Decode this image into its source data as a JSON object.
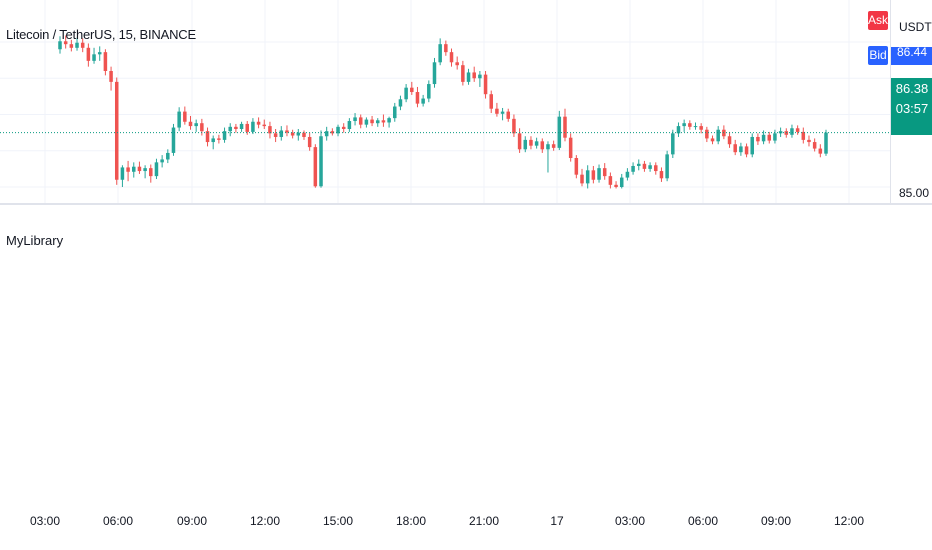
{
  "symbol": {
    "name": "Litecoin / TetherUS",
    "interval": "15",
    "exchange": "BINANCE"
  },
  "price_axis": {
    "currency": "USDT",
    "tick_label": "85.00",
    "bid_price_partial": "86.44",
    "last_price": "86.38",
    "countdown": "03:57"
  },
  "buttons": {
    "ask": "Ask",
    "bid": "Bid"
  },
  "indicator": {
    "title": "MyLibrary"
  },
  "time_axis": {
    "labels": [
      "03:00",
      "06:00",
      "09:00",
      "12:00",
      "15:00",
      "18:00",
      "21:00",
      "17",
      "03:00",
      "06:00",
      "09:00",
      "12:00"
    ]
  },
  "colors": {
    "up": "#26a69a",
    "down": "#ef5350",
    "last_price_badge": "#089981",
    "ask": "#f23645",
    "bid": "#2962ff"
  },
  "chart_data": {
    "type": "candlestick",
    "pattern": "UDDUDDUUDUDUDDUUDDDUUUUDUDUUUDUDDDUUUDUUDUDDUDUUDUDDUUUDDUDDUUUUUDUUUDUUUUUDDDUUUDUUUUUUUDDDDUUDDDUDDDUDDDDUUUUDDUDDDDUDDDUDDDDUUUUUUUDUDUUUUUUUDDUDDUDDUDDUDUUUUDUDDUUUU",
    "ohlc": [
      [
        86.9,
        87.08,
        86.84,
        87.01
      ],
      [
        87.01,
        87.09,
        86.91,
        86.97
      ],
      [
        86.97,
        87.03,
        86.87,
        86.92
      ],
      [
        86.92,
        87.06,
        86.88,
        86.99
      ],
      [
        86.99,
        87.05,
        86.86,
        86.92
      ],
      [
        86.92,
        86.98,
        86.66,
        86.74
      ],
      [
        86.74,
        86.92,
        86.7,
        86.83
      ],
      [
        86.83,
        86.94,
        86.74,
        86.86
      ],
      [
        86.86,
        86.9,
        86.54,
        86.6
      ],
      [
        86.6,
        86.66,
        86.33,
        86.45
      ],
      [
        86.45,
        86.51,
        85.03,
        85.1
      ],
      [
        85.1,
        85.3,
        85.0,
        85.27
      ],
      [
        85.27,
        85.36,
        85.08,
        85.21
      ],
      [
        85.21,
        85.34,
        85.13,
        85.28
      ],
      [
        85.28,
        85.35,
        85.18,
        85.22
      ],
      [
        85.22,
        85.3,
        85.12,
        85.26
      ],
      [
        85.26,
        85.31,
        85.06,
        85.15
      ],
      [
        85.15,
        85.39,
        85.11,
        85.34
      ],
      [
        85.34,
        85.44,
        85.27,
        85.38
      ],
      [
        85.38,
        85.52,
        85.33,
        85.47
      ],
      [
        85.47,
        85.87,
        85.43,
        85.82
      ],
      [
        85.82,
        86.1,
        85.77,
        86.04
      ],
      [
        86.04,
        86.11,
        85.86,
        85.9
      ],
      [
        85.9,
        85.98,
        85.79,
        85.84
      ],
      [
        85.84,
        85.93,
        85.76,
        85.88
      ],
      [
        85.88,
        85.94,
        85.71,
        85.77
      ],
      [
        85.77,
        85.82,
        85.56,
        85.62
      ],
      [
        85.62,
        85.71,
        85.52,
        85.67
      ],
      [
        85.67,
        85.72,
        85.6,
        85.65
      ],
      [
        85.65,
        85.82,
        85.61,
        85.77
      ],
      [
        85.77,
        85.88,
        85.7,
        85.83
      ],
      [
        85.83,
        85.87,
        85.75,
        85.8
      ],
      [
        85.8,
        85.9,
        85.76,
        85.87
      ],
      [
        85.87,
        85.91,
        85.72,
        85.76
      ],
      [
        85.76,
        85.95,
        85.73,
        85.9
      ],
      [
        85.9,
        85.96,
        85.81,
        85.86
      ],
      [
        85.86,
        85.93,
        85.8,
        85.84
      ],
      [
        85.84,
        85.9,
        85.67,
        85.74
      ],
      [
        85.74,
        85.8,
        85.62,
        85.69
      ],
      [
        85.69,
        85.84,
        85.64,
        85.78
      ],
      [
        85.78,
        85.85,
        85.7,
        85.75
      ],
      [
        85.75,
        85.79,
        85.67,
        85.71
      ],
      [
        85.71,
        85.8,
        85.64,
        85.75
      ],
      [
        85.75,
        85.78,
        85.65,
        85.69
      ],
      [
        85.69,
        85.75,
        85.5,
        85.55
      ],
      [
        85.55,
        85.59,
        84.99,
        85.01
      ],
      [
        85.01,
        85.78,
        84.99,
        85.7
      ],
      [
        85.7,
        85.83,
        85.64,
        85.77
      ],
      [
        85.77,
        85.81,
        85.71,
        85.74
      ],
      [
        85.74,
        85.86,
        85.7,
        85.83
      ],
      [
        85.83,
        85.88,
        85.75,
        85.8
      ],
      [
        85.8,
        85.95,
        85.76,
        85.91
      ],
      [
        85.91,
        86.02,
        85.85,
        85.96
      ],
      [
        85.96,
        86.0,
        85.81,
        85.86
      ],
      [
        85.86,
        85.96,
        85.82,
        85.93
      ],
      [
        85.93,
        85.98,
        85.84,
        85.88
      ],
      [
        85.88,
        85.95,
        85.83,
        85.92
      ],
      [
        85.92,
        86.0,
        85.83,
        85.89
      ],
      [
        85.89,
        85.97,
        85.82,
        85.95
      ],
      [
        85.95,
        86.16,
        85.9,
        86.11
      ],
      [
        86.11,
        86.26,
        86.06,
        86.21
      ],
      [
        86.21,
        86.42,
        86.17,
        86.37
      ],
      [
        86.37,
        86.45,
        86.27,
        86.31
      ],
      [
        86.31,
        86.38,
        86.1,
        86.15
      ],
      [
        86.15,
        86.27,
        86.11,
        86.22
      ],
      [
        86.22,
        86.47,
        86.17,
        86.42
      ],
      [
        86.42,
        86.78,
        86.37,
        86.72
      ],
      [
        86.72,
        87.05,
        86.68,
        86.97
      ],
      [
        86.97,
        87.02,
        86.81,
        86.86
      ],
      [
        86.86,
        86.91,
        86.66,
        86.72
      ],
      [
        86.72,
        86.8,
        86.62,
        86.68
      ],
      [
        86.68,
        86.74,
        86.4,
        86.45
      ],
      [
        86.45,
        86.63,
        86.41,
        86.58
      ],
      [
        86.58,
        86.66,
        86.45,
        86.5
      ],
      [
        86.5,
        86.6,
        86.38,
        86.55
      ],
      [
        86.55,
        86.6,
        86.22,
        86.28
      ],
      [
        86.28,
        86.33,
        86.02,
        86.08
      ],
      [
        86.08,
        86.16,
        85.97,
        86.01
      ],
      [
        86.01,
        86.09,
        85.92,
        86.04
      ],
      [
        86.04,
        86.08,
        85.9,
        85.94
      ],
      [
        85.94,
        86.0,
        85.69,
        85.74
      ],
      [
        85.74,
        85.81,
        85.47,
        85.52
      ],
      [
        85.52,
        85.7,
        85.48,
        85.65
      ],
      [
        85.65,
        85.7,
        85.52,
        85.57
      ],
      [
        85.57,
        85.68,
        85.53,
        85.63
      ],
      [
        85.63,
        85.67,
        85.47,
        85.52
      ],
      [
        85.52,
        85.63,
        85.2,
        85.59
      ],
      [
        85.59,
        85.64,
        85.5,
        85.54
      ],
      [
        85.54,
        86.05,
        85.51,
        85.97
      ],
      [
        85.97,
        86.08,
        85.63,
        85.68
      ],
      [
        85.68,
        85.74,
        85.35,
        85.4
      ],
      [
        85.4,
        85.44,
        85.12,
        85.17
      ],
      [
        85.17,
        85.25,
        85.01,
        85.05
      ],
      [
        85.05,
        85.3,
        84.98,
        85.23
      ],
      [
        85.23,
        85.29,
        85.05,
        85.1
      ],
      [
        85.1,
        85.31,
        85.06,
        85.26
      ],
      [
        85.26,
        85.33,
        85.1,
        85.15
      ],
      [
        85.15,
        85.2,
        84.98,
        85.03
      ],
      [
        85.03,
        85.08,
        84.98,
        85.0
      ],
      [
        85.0,
        85.18,
        84.98,
        85.13
      ],
      [
        85.13,
        85.26,
        85.09,
        85.21
      ],
      [
        85.21,
        85.34,
        85.17,
        85.29
      ],
      [
        85.29,
        85.38,
        85.23,
        85.32
      ],
      [
        85.32,
        85.36,
        85.21,
        85.25
      ],
      [
        85.25,
        85.34,
        85.21,
        85.3
      ],
      [
        85.3,
        85.34,
        85.17,
        85.22
      ],
      [
        85.22,
        85.27,
        85.07,
        85.12
      ],
      [
        85.12,
        85.5,
        85.08,
        85.45
      ],
      [
        85.45,
        85.79,
        85.4,
        85.74
      ],
      [
        85.74,
        85.89,
        85.69,
        85.84
      ],
      [
        85.84,
        85.93,
        85.76,
        85.88
      ],
      [
        85.88,
        85.92,
        85.79,
        85.83
      ],
      [
        85.83,
        85.89,
        85.79,
        85.84
      ],
      [
        85.84,
        85.88,
        85.74,
        85.79
      ],
      [
        85.79,
        85.83,
        85.62,
        85.67
      ],
      [
        85.67,
        85.71,
        85.59,
        85.63
      ],
      [
        85.63,
        85.84,
        85.59,
        85.79
      ],
      [
        85.79,
        85.85,
        85.66,
        85.7
      ],
      [
        85.7,
        85.76,
        85.54,
        85.59
      ],
      [
        85.59,
        85.65,
        85.44,
        85.48
      ],
      [
        85.48,
        85.61,
        85.43,
        85.56
      ],
      [
        85.56,
        85.6,
        85.41,
        85.45
      ],
      [
        85.45,
        85.74,
        85.41,
        85.69
      ],
      [
        85.69,
        85.74,
        85.58,
        85.63
      ],
      [
        85.63,
        85.78,
        85.59,
        85.72
      ],
      [
        85.72,
        85.76,
        85.6,
        85.64
      ],
      [
        85.64,
        85.79,
        85.6,
        85.74
      ],
      [
        85.74,
        85.82,
        85.69,
        85.77
      ],
      [
        85.77,
        85.81,
        85.68,
        85.72
      ],
      [
        85.72,
        85.86,
        85.68,
        85.81
      ],
      [
        85.81,
        85.85,
        85.72,
        85.76
      ],
      [
        85.76,
        85.82,
        85.6,
        85.65
      ],
      [
        85.65,
        85.71,
        85.56,
        85.62
      ],
      [
        85.62,
        85.67,
        85.49,
        85.53
      ],
      [
        85.53,
        85.59,
        85.41,
        85.46
      ],
      [
        85.46,
        85.79,
        85.43,
        85.75
      ]
    ]
  }
}
